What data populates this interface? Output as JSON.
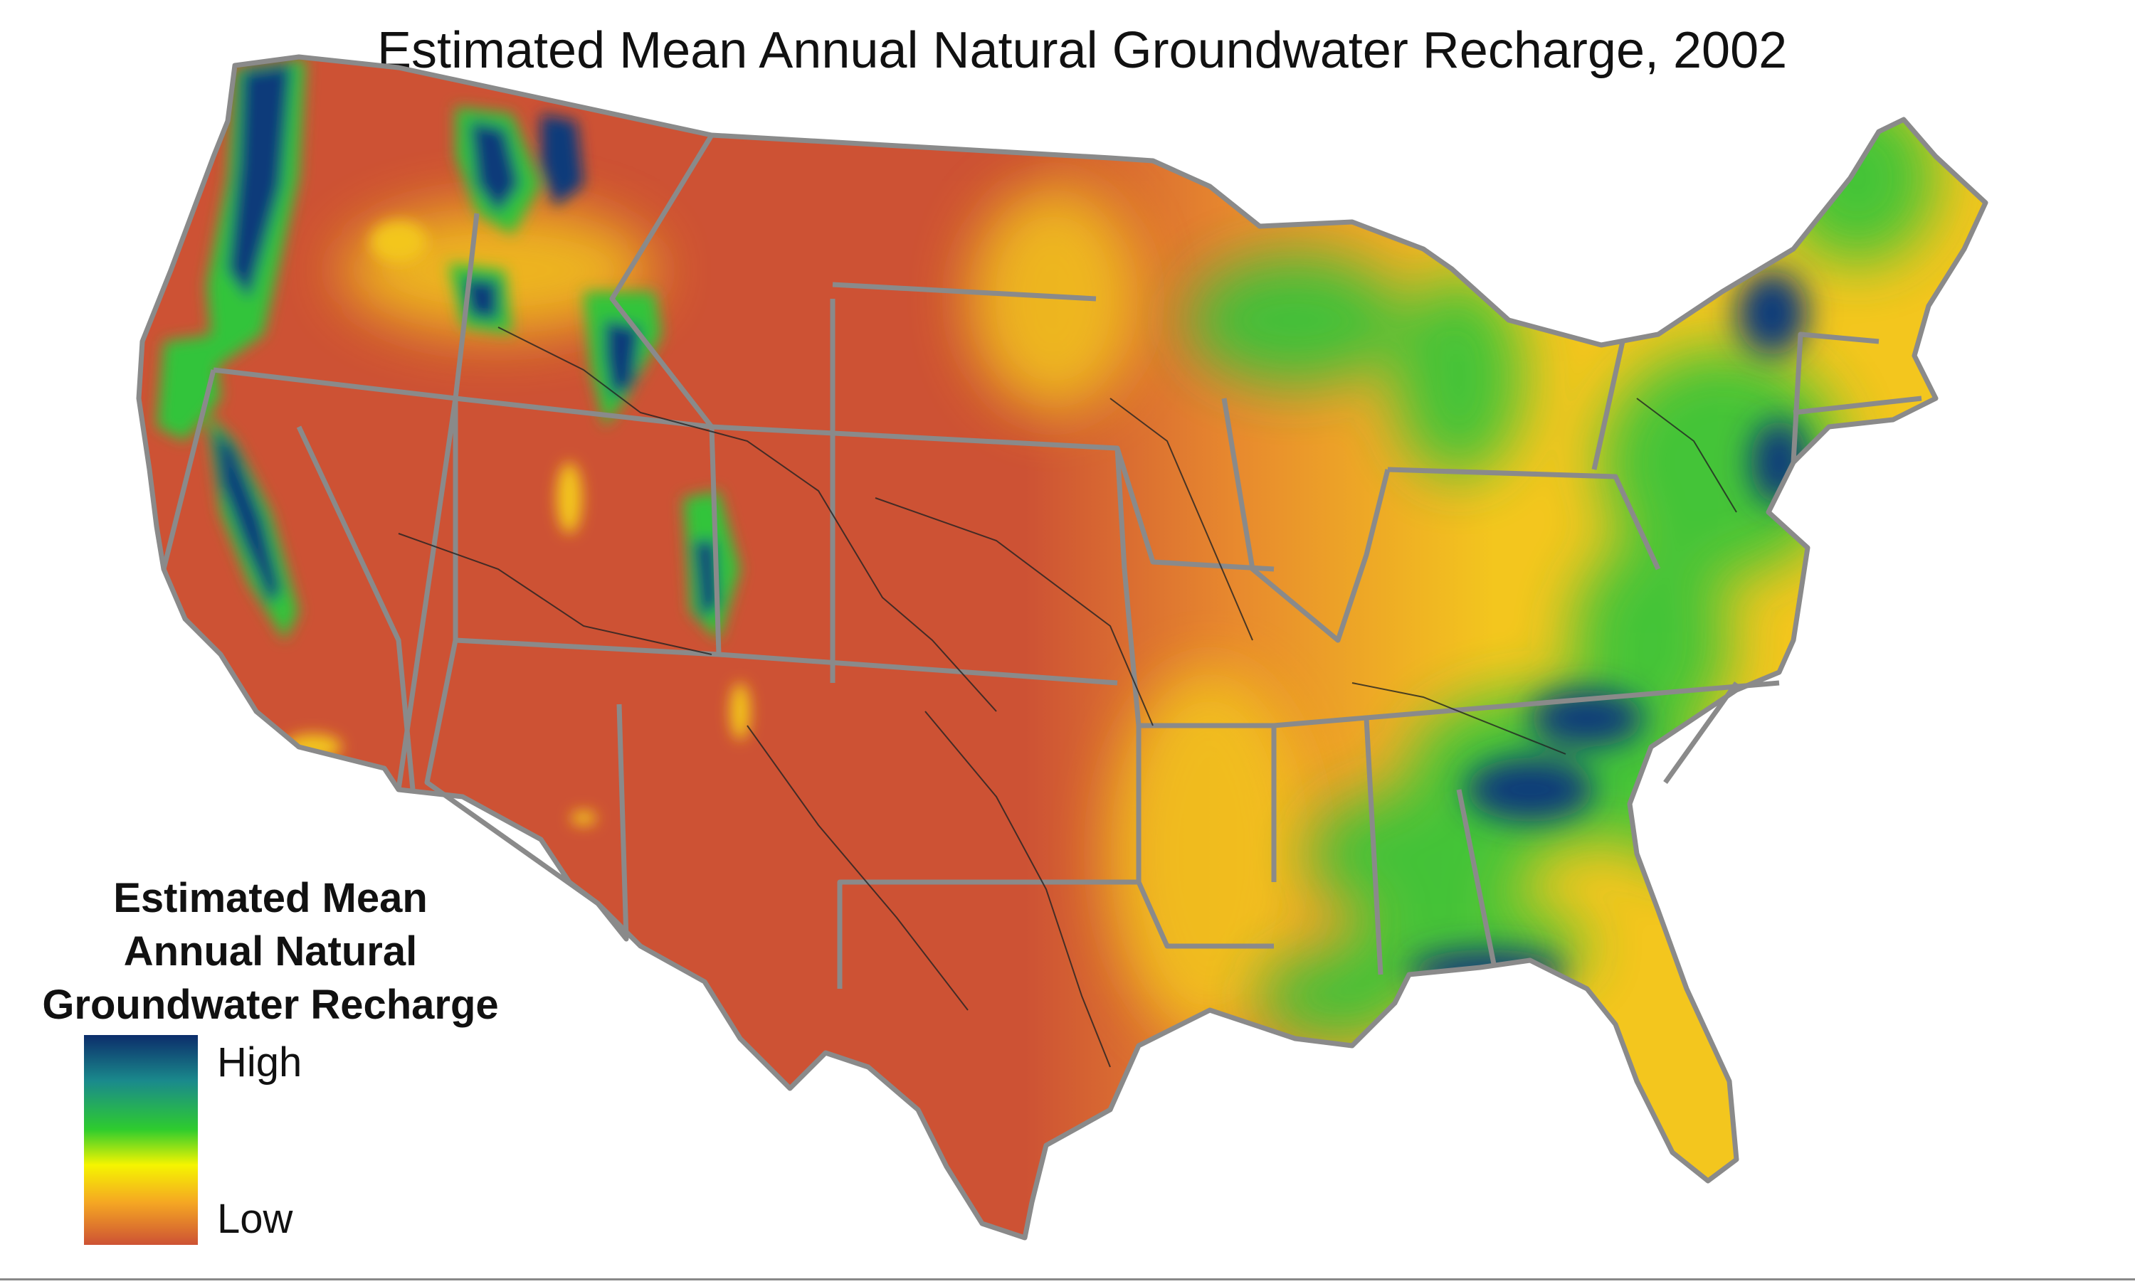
{
  "title": "Estimated Mean Annual Natural Groundwater Recharge, 2002",
  "legend": {
    "title_lines": [
      "Estimated Mean",
      "Annual  Natural",
      "Groundwater Recharge"
    ],
    "high_label": "High",
    "low_label": "Low",
    "gradient_colors": [
      "#0c2d6b",
      "#1a8a8c",
      "#2ecc2e",
      "#f5f500",
      "#f5a623",
      "#cd5234"
    ]
  },
  "colors": {
    "low": "#cd5234",
    "low_mid": "#e88a2e",
    "mid": "#f3c61e",
    "mid_high": "#33c43a",
    "high": "#0f3a7a",
    "state_border": "#8a8a8a",
    "county_line": "#222222"
  }
}
